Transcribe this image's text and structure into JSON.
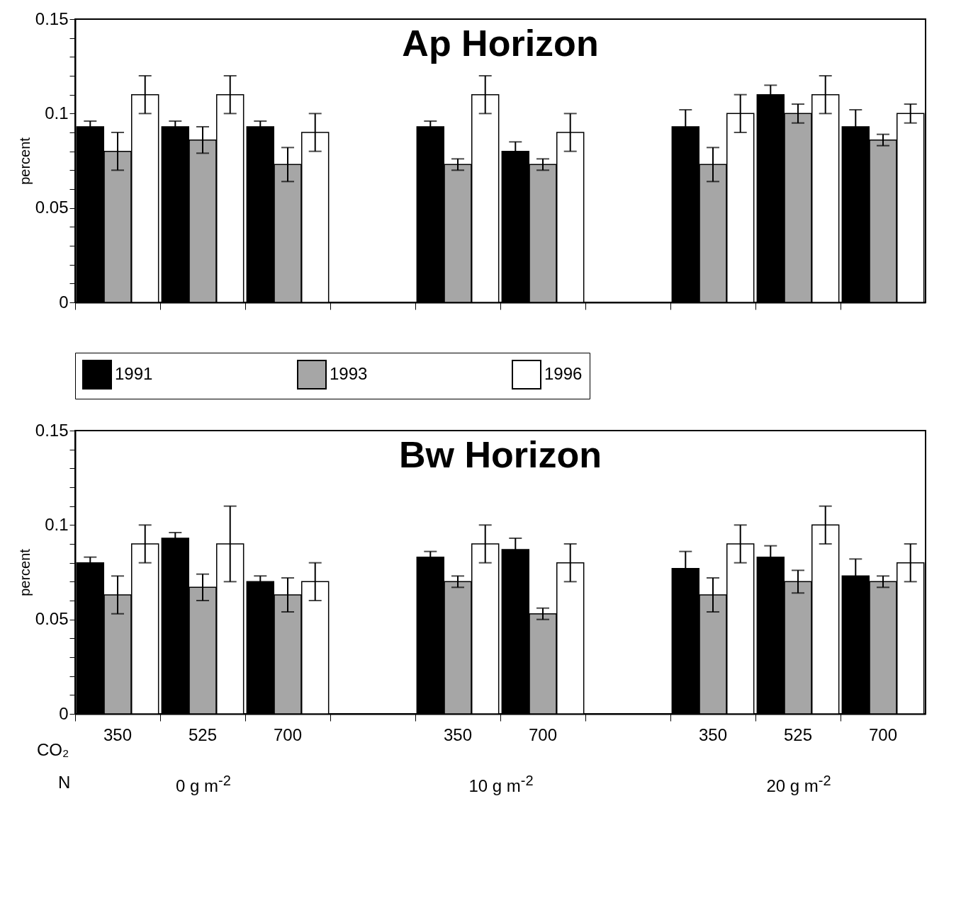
{
  "chart_data": [
    {
      "type": "bar",
      "title": "Ap Horizon",
      "ylabel": "percent",
      "categories": [
        "350",
        "525",
        "700",
        null,
        "350",
        "700",
        null,
        "350",
        "525",
        "700"
      ],
      "series": [
        {
          "name": "1991",
          "color": "#000000",
          "values": [
            0.093,
            0.093,
            0.093,
            null,
            0.093,
            0.08,
            null,
            0.093,
            0.11,
            0.093
          ],
          "errors": [
            0.003,
            0.003,
            0.003,
            null,
            0.003,
            0.005,
            null,
            0.009,
            0.005,
            0.009
          ]
        },
        {
          "name": "1993",
          "color": "#a6a6a6",
          "values": [
            0.08,
            0.086,
            0.073,
            null,
            0.073,
            0.073,
            null,
            0.073,
            0.1,
            0.086
          ],
          "errors": [
            0.01,
            0.007,
            0.009,
            null,
            0.003,
            0.003,
            null,
            0.009,
            0.005,
            0.003
          ]
        },
        {
          "name": "1996",
          "color": "#ffffff",
          "values": [
            0.11,
            0.11,
            0.09,
            null,
            0.11,
            0.09,
            null,
            0.1,
            0.11,
            0.1
          ],
          "errors": [
            0.01,
            0.01,
            0.01,
            null,
            0.01,
            0.01,
            null,
            0.01,
            0.01,
            0.005
          ]
        }
      ],
      "ylim": [
        0,
        0.15
      ],
      "yticks": [
        0,
        {
          "value": 0.01,
          "label": null
        },
        {
          "value": 0.02,
          "label": null
        },
        {
          "value": 0.03,
          "label": null
        },
        {
          "value": 0.04,
          "label": null
        },
        0.05,
        {
          "value": 0.06,
          "label": null
        },
        {
          "value": 0.07,
          "label": null
        },
        {
          "value": 0.08,
          "label": null
        },
        {
          "value": 0.09,
          "label": null
        },
        0.1,
        {
          "value": 0.11,
          "label": null
        },
        {
          "value": 0.12,
          "label": null
        },
        {
          "value": 0.13,
          "label": null
        },
        {
          "value": 0.14,
          "label": null
        },
        0.15
      ],
      "grid": false,
      "legend": "bottom",
      "tick_labels": "y"
    },
    {
      "type": "bar",
      "title": "Bw Horizon",
      "ylabel": "percent",
      "categories": [
        "350",
        "525",
        "700",
        null,
        "350",
        "700",
        null,
        "350",
        "525",
        "700"
      ],
      "series": [
        {
          "color": "#000000",
          "values": [
            0.08,
            0.093,
            0.07,
            null,
            0.083,
            0.087,
            null,
            0.077,
            0.083,
            0.073
          ],
          "errors": [
            0.003,
            0.003,
            0.003,
            null,
            0.003,
            0.006,
            null,
            0.009,
            0.006,
            0.009
          ]
        },
        {
          "color": "#a6a6a6",
          "values": [
            0.063,
            0.067,
            0.063,
            null,
            0.07,
            0.053,
            null,
            0.063,
            0.07,
            0.07
          ],
          "errors": [
            0.01,
            0.007,
            0.009,
            null,
            0.003,
            0.003,
            null,
            0.009,
            0.006,
            0.003
          ]
        },
        {
          "color": "#ffffff",
          "values": [
            0.09,
            0.09,
            0.07,
            null,
            0.09,
            0.08,
            null,
            0.09,
            0.1,
            0.08
          ],
          "errors": [
            0.01,
            0.02,
            0.01,
            null,
            0.01,
            0.01,
            null,
            0.01,
            0.01,
            0.01
          ]
        }
      ],
      "ylim": [
        0,
        0.15
      ],
      "yticks": [
        0,
        {
          "value": 0.01,
          "label": null
        },
        {
          "value": 0.02,
          "label": null
        },
        {
          "value": 0.03,
          "label": null
        },
        {
          "value": 0.04,
          "label": null
        },
        0.05,
        {
          "value": 0.06,
          "label": null
        },
        {
          "value": 0.07,
          "label": null
        },
        {
          "value": 0.08,
          "label": null
        },
        {
          "value": 0.09,
          "label": null
        },
        0.1,
        {
          "value": 0.11,
          "label": null
        },
        {
          "value": 0.12,
          "label": null
        },
        {
          "value": 0.13,
          "label": null
        },
        {
          "value": 0.14,
          "label": null
        },
        0.15
      ],
      "grid": false,
      "annotations": [
        "CO₂",
        "N",
        "0 g m$^{-2}$",
        "10 g m$^{-2}$",
        "20 g m$^{-2}$"
      ]
    }
  ]
}
